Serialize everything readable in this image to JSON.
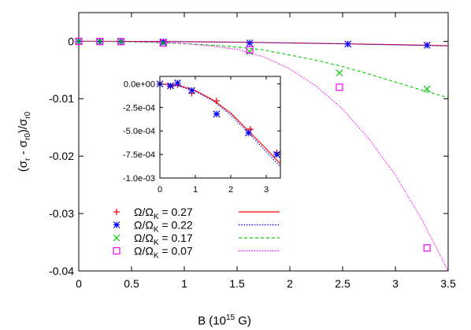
{
  "chart_data": [
    {
      "type": "scatter",
      "role": "main",
      "xlabel": "B (10^15 G)",
      "ylabel": "(σr - σr0)/σr0",
      "xlim": [
        0,
        3.5
      ],
      "ylim": [
        -0.04,
        0.005
      ],
      "xticks": [
        "0",
        "0.5",
        "1",
        "1.5",
        "2",
        "2.5",
        "3",
        "3.5"
      ],
      "yticks": [
        "0",
        "-0.01",
        "-0.02",
        "-0.03",
        "-0.04"
      ],
      "legend": "bottom-left",
      "series": [
        {
          "name": "Ω/ΩK = 0.27",
          "color": "#ff0000",
          "marker": "plus",
          "points": [
            [
              0,
              0
            ],
            [
              0.2,
              -3e-05
            ],
            [
              0.4,
              -4e-05
            ],
            [
              0.8,
              -0.0001
            ],
            [
              1.62,
              -0.00025
            ],
            [
              2.55,
              -0.00045
            ],
            [
              3.3,
              -0.00065
            ]
          ],
          "curve": [
            [
              0,
              0
            ],
            [
              0.5,
              -2e-05
            ],
            [
              1,
              -6e-05
            ],
            [
              1.5,
              -0.00015
            ],
            [
              2,
              -0.00028
            ],
            [
              2.5,
              -0.00042
            ],
            [
              3,
              -0.00058
            ],
            [
              3.5,
              -0.00078
            ]
          ],
          "line_style": "solid"
        },
        {
          "name": "Ω/ΩK = 0.22",
          "color": "#0000ff",
          "marker": "star",
          "points": [
            [
              0,
              0
            ],
            [
              0.2,
              -3e-05
            ],
            [
              0.4,
              -4e-05
            ],
            [
              0.8,
              -0.0001
            ],
            [
              1.62,
              -0.0003
            ],
            [
              2.55,
              -0.00048
            ],
            [
              3.3,
              -0.00068
            ]
          ],
          "curve": [
            [
              0,
              0
            ],
            [
              0.5,
              -2e-05
            ],
            [
              1,
              -7e-05
            ],
            [
              1.5,
              -0.00016
            ],
            [
              2,
              -0.0003
            ],
            [
              2.5,
              -0.00045
            ],
            [
              3,
              -0.00062
            ],
            [
              3.5,
              -0.0008
            ]
          ],
          "line_style": "dotted"
        },
        {
          "name": "Ω/ΩK = 0.17",
          "color": "#00cc00",
          "marker": "x",
          "points": [
            [
              0,
              0
            ],
            [
              0.2,
              -2e-05
            ],
            [
              0.4,
              -5e-05
            ],
            [
              0.8,
              -0.0003
            ],
            [
              1.62,
              -0.0018
            ],
            [
              2.47,
              -0.0055
            ],
            [
              3.3,
              -0.0083
            ]
          ],
          "curve": [
            [
              0,
              0
            ],
            [
              0.25,
              -2e-05
            ],
            [
              0.5,
              -9e-05
            ],
            [
              0.75,
              -0.00021
            ],
            [
              1,
              -0.0004
            ],
            [
              1.25,
              -0.00065
            ],
            [
              1.5,
              -0.001
            ],
            [
              1.75,
              -0.0015
            ],
            [
              2,
              -0.0024
            ],
            [
              2.25,
              -0.0033
            ],
            [
              2.5,
              -0.0044
            ],
            [
              2.75,
              -0.0057
            ],
            [
              3,
              -0.0071
            ],
            [
              3.25,
              -0.0085
            ],
            [
              3.5,
              -0.0098
            ]
          ],
          "line_style": "dashed"
        },
        {
          "name": "Ω/ΩK = 0.07",
          "color": "#ff00ff",
          "marker": "square",
          "points": [
            [
              0,
              0
            ],
            [
              0.2,
              -2e-05
            ],
            [
              0.4,
              -5e-05
            ],
            [
              0.8,
              -0.0003
            ],
            [
              1.62,
              -0.0015
            ],
            [
              2.47,
              -0.008
            ],
            [
              3.3,
              -0.036
            ]
          ],
          "curve": [
            [
              0,
              0
            ],
            [
              0.25,
              -1e-05
            ],
            [
              0.5,
              -6e-05
            ],
            [
              0.75,
              -0.00016
            ],
            [
              1,
              -0.0004
            ],
            [
              1.25,
              -0.0008
            ],
            [
              1.5,
              -0.0014
            ],
            [
              1.75,
              -0.0027
            ],
            [
              2,
              -0.0048
            ],
            [
              2.25,
              -0.0078
            ],
            [
              2.5,
              -0.0118
            ],
            [
              2.75,
              -0.017
            ],
            [
              3,
              -0.0233
            ],
            [
              3.25,
              -0.031
            ],
            [
              3.5,
              -0.04
            ]
          ],
          "line_style": "dotted"
        }
      ]
    },
    {
      "type": "scatter",
      "role": "inset",
      "xlim": [
        0,
        3.4
      ],
      "ylim": [
        -0.001,
        8e-05
      ],
      "xticks": [
        "0",
        "1",
        "2",
        "3"
      ],
      "yticks": [
        "0.0e+00",
        "-2.5e-04",
        "-5.0e-04",
        "-7.5e-04",
        "-1.0e-03"
      ],
      "series": [
        {
          "name": "Ω/ΩK = 0.27",
          "color": "#ff0000",
          "marker": "plus",
          "points": [
            [
              0,
              0
            ],
            [
              0.3,
              -3e-05
            ],
            [
              0.5,
              -1e-05
            ],
            [
              0.9,
              -0.0001
            ],
            [
              1.6,
              -0.00018
            ],
            [
              2.55,
              -0.00048
            ],
            [
              3.3,
              -0.00073
            ]
          ],
          "curve": [
            [
              0,
              0
            ],
            [
              0.5,
              -1e-05
            ],
            [
              1,
              -7e-05
            ],
            [
              1.5,
              -0.00017
            ],
            [
              2,
              -0.00031
            ],
            [
              2.5,
              -0.0005
            ],
            [
              3,
              -0.00069
            ],
            [
              3.4,
              -0.00085
            ]
          ],
          "line_style": "solid"
        },
        {
          "name": "Ω/ΩK = 0.22",
          "color": "#0000ff",
          "marker": "star",
          "points": [
            [
              0,
              0
            ],
            [
              0.3,
              -2e-05
            ],
            [
              0.5,
              1e-05
            ],
            [
              0.9,
              -7e-05
            ],
            [
              1.6,
              -0.00032
            ],
            [
              2.5,
              -0.00052
            ],
            [
              3.3,
              -0.00075
            ]
          ],
          "curve": [
            [
              0,
              0
            ],
            [
              0.5,
              -2e-05
            ],
            [
              1,
              -8e-05
            ],
            [
              1.5,
              -0.00018
            ],
            [
              2,
              -0.00033
            ],
            [
              2.5,
              -0.00052
            ],
            [
              3,
              -0.00072
            ],
            [
              3.4,
              -0.00088
            ]
          ],
          "line_style": "dotted"
        }
      ]
    }
  ]
}
